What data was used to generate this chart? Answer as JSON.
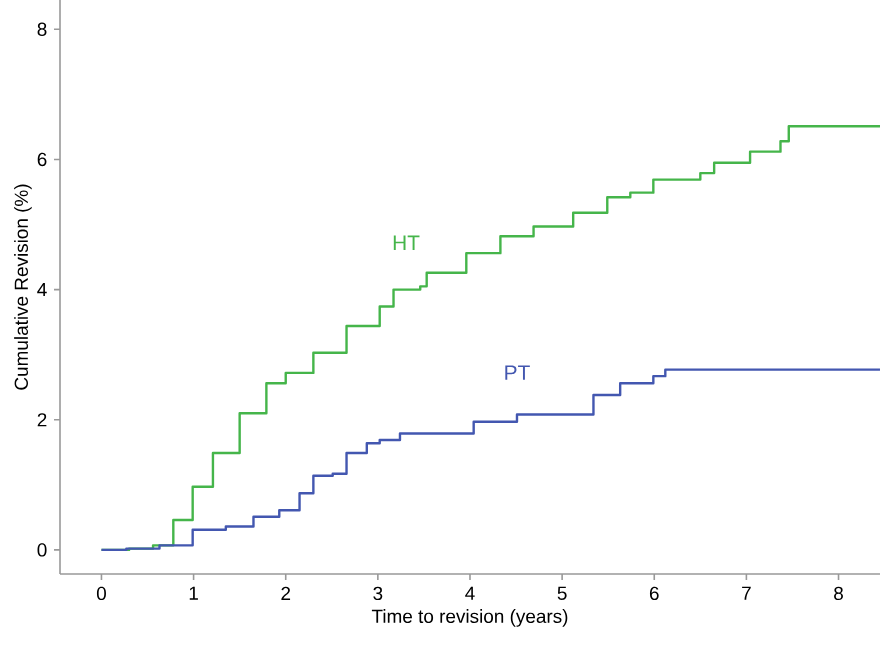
{
  "chart_data": {
    "type": "step",
    "xlabel": "Time to revision (years)",
    "ylabel": "Cumulative Revision (%)",
    "xlim": [
      -0.45,
      8.45
    ],
    "ylim": [
      -0.37,
      8.45
    ],
    "xticks": [
      0,
      1,
      2,
      3,
      4,
      5,
      6,
      7,
      8
    ],
    "yticks": [
      0,
      2,
      4,
      6,
      8
    ],
    "grid": false,
    "legend": false,
    "marker": "none",
    "line_style": "solid",
    "series": [
      {
        "name": "HT",
        "color": "#45b54a",
        "x": [
          0,
          0.3,
          0.56,
          0.78,
          0.99,
          1.21,
          1.5,
          1.79,
          2.0,
          2.3,
          2.66,
          3.02,
          3.17,
          3.46,
          3.53,
          3.96,
          4.33,
          4.69,
          5.12,
          5.49,
          5.74,
          5.99,
          6.5,
          6.65,
          7.04,
          7.37,
          7.46,
          8.45
        ],
        "values": [
          0,
          0.02,
          0.07,
          0.46,
          0.97,
          1.49,
          2.1,
          2.56,
          2.72,
          3.03,
          3.44,
          3.74,
          4.0,
          4.05,
          4.26,
          4.56,
          4.82,
          4.97,
          5.18,
          5.42,
          5.49,
          5.69,
          5.79,
          5.95,
          6.12,
          6.28,
          6.51,
          6.51
        ]
      },
      {
        "name": "PT",
        "color": "#4357b0",
        "x": [
          0,
          0.27,
          0.63,
          0.99,
          1.35,
          1.65,
          1.93,
          2.15,
          2.3,
          2.51,
          2.66,
          2.88,
          3.02,
          3.24,
          3.75,
          4.04,
          4.51,
          5.16,
          5.34,
          5.63,
          5.99,
          6.12,
          8.45
        ],
        "values": [
          0,
          0.02,
          0.07,
          0.31,
          0.36,
          0.51,
          0.61,
          0.87,
          1.14,
          1.17,
          1.49,
          1.64,
          1.69,
          1.79,
          1.79,
          1.97,
          2.08,
          2.08,
          2.38,
          2.56,
          2.67,
          2.77,
          2.77
        ]
      }
    ]
  }
}
